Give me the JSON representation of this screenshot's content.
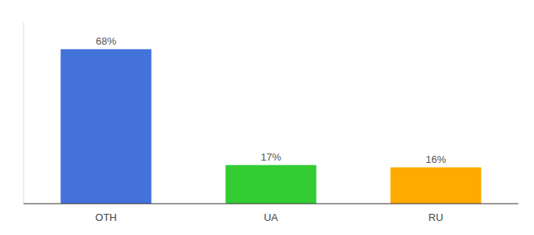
{
  "chart_data": {
    "type": "bar",
    "categories": [
      "OTH",
      "UA",
      "RU"
    ],
    "values": [
      68,
      17,
      16
    ],
    "value_labels": [
      "68%",
      "17%",
      "16%"
    ],
    "colors": [
      "#4472db",
      "#33cc33",
      "#ffaa00"
    ],
    "ylim": [
      0,
      80
    ],
    "grid": false,
    "data_labels": true,
    "tick_labels": "x"
  }
}
